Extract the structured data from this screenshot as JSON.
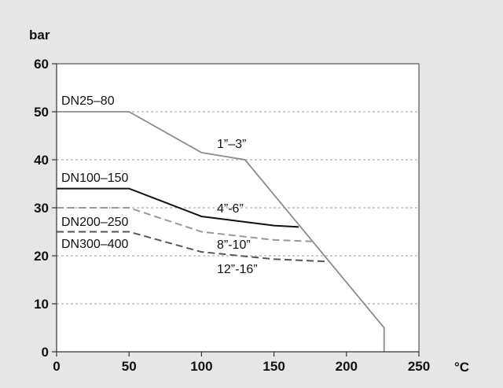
{
  "chart_data": {
    "type": "line",
    "ylabel": "bar",
    "xlabel": "°C",
    "xlim": [
      0,
      250
    ],
    "ylim": [
      0,
      60
    ],
    "x_ticks": [
      "0",
      "50",
      "100",
      "150",
      "200",
      "250"
    ],
    "y_ticks": [
      "0",
      "10",
      "20",
      "30",
      "40",
      "50",
      "60"
    ],
    "grid": "horizontal dashed",
    "colors": {
      "plot_bg": "#ffffff",
      "page_bg": "#e6e6e6",
      "envelope": "#8c8c8c",
      "dn100": "#111111",
      "dn200": "#999999",
      "dn300": "#555555",
      "grid": "#9a9a9a"
    },
    "series": [
      {
        "id": "envelope",
        "label_dn": "DN25–80",
        "label_inch": "1”–3”",
        "style": "solid",
        "x": [
          0,
          50,
          100,
          130,
          226,
          226
        ],
        "y": [
          50,
          50,
          41.5,
          40,
          5,
          0
        ]
      },
      {
        "id": "dn100",
        "label_dn": "DN100–150",
        "label_inch": "4”-6”",
        "style": "solid",
        "x": [
          0,
          50,
          100,
          150,
          167
        ],
        "y": [
          34,
          34,
          28.2,
          26.3,
          26
        ]
      },
      {
        "id": "dn200",
        "label_dn": "DN200–250",
        "label_inch": "8”-10”",
        "style": "dashed",
        "x": [
          0,
          50,
          100,
          150,
          176
        ],
        "y": [
          30,
          30,
          25,
          23.3,
          23
        ]
      },
      {
        "id": "dn300",
        "label_dn": "DN300–400",
        "label_inch": "12”-16”",
        "style": "dashed",
        "x": [
          0,
          50,
          100,
          150,
          187
        ],
        "y": [
          25,
          25,
          20.8,
          19.3,
          18.8
        ]
      }
    ]
  }
}
